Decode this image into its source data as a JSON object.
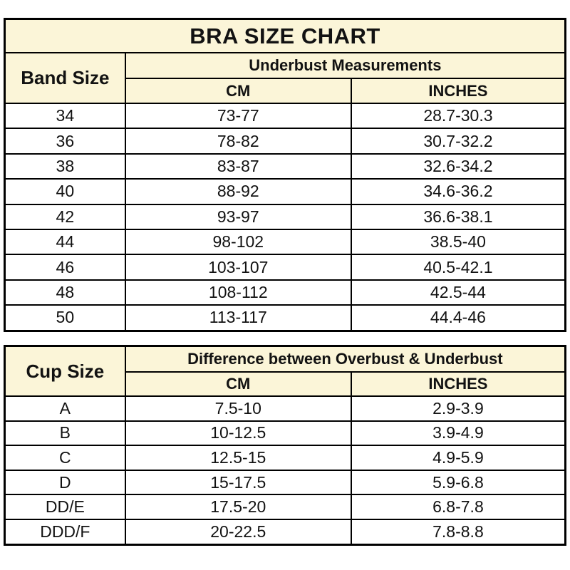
{
  "colors": {
    "header_background": "#FBF5D8",
    "border": "#000000",
    "text": "#121212",
    "page_background": "#FFFFFF"
  },
  "chart_data": [
    {
      "type": "table",
      "title": "BRA SIZE CHART",
      "row_header": "Band Size",
      "group_header": "Underbust Measurements",
      "columns": [
        "CM",
        "INCHES"
      ],
      "rows": [
        [
          "34",
          "73-77",
          "28.7-30.3"
        ],
        [
          "36",
          "78-82",
          "30.7-32.2"
        ],
        [
          "38",
          "83-87",
          "32.6-34.2"
        ],
        [
          "40",
          "88-92",
          "34.6-36.2"
        ],
        [
          "42",
          "93-97",
          "36.6-38.1"
        ],
        [
          "44",
          "98-102",
          "38.5-40"
        ],
        [
          "46",
          "103-107",
          "40.5-42.1"
        ],
        [
          "48",
          "108-112",
          "42.5-44"
        ],
        [
          "50",
          "113-117",
          "44.4-46"
        ]
      ]
    },
    {
      "type": "table",
      "title": "",
      "row_header": "Cup Size",
      "group_header": "Difference between Overbust & Underbust",
      "columns": [
        "CM",
        "INCHES"
      ],
      "rows": [
        [
          "A",
          "7.5-10",
          "2.9-3.9"
        ],
        [
          "B",
          "10-12.5",
          "3.9-4.9"
        ],
        [
          "C",
          "12.5-15",
          "4.9-5.9"
        ],
        [
          "D",
          "15-17.5",
          "5.9-6.8"
        ],
        [
          "DD/E",
          "17.5-20",
          "6.8-7.8"
        ],
        [
          "DDD/F",
          "20-22.5",
          "7.8-8.8"
        ]
      ]
    }
  ]
}
